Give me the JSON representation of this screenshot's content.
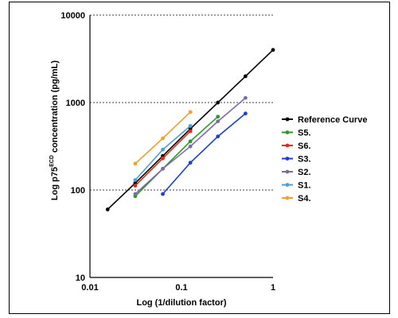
{
  "chart_data": {
    "type": "line",
    "title": "",
    "xlabel": "Log (1/dilution factor)",
    "ylabel": {
      "prefix": "Log p75",
      "superscript": "ECD",
      "suffix": " concentration (pg/mL)"
    },
    "x_scale": "log",
    "y_scale": "log",
    "xlim": [
      0.01,
      1
    ],
    "ylim": [
      10,
      10000
    ],
    "x_ticks": [
      {
        "value": 0.01,
        "label": "0.01"
      },
      {
        "value": 0.1,
        "label": "0.1"
      },
      {
        "value": 1,
        "label": "1"
      }
    ],
    "y_ticks": [
      {
        "value": 10,
        "label": "10"
      },
      {
        "value": 100,
        "label": "100"
      },
      {
        "value": 1000,
        "label": "1000"
      },
      {
        "value": 10000,
        "label": "10000"
      }
    ],
    "grid": "horizontal-dashed",
    "legend_position": "right",
    "series": [
      {
        "name": "Reference Curve",
        "color": "#000000",
        "x": [
          0.0156,
          0.03125,
          0.0625,
          0.125,
          0.25,
          0.5,
          1
        ],
        "y": [
          60,
          120,
          245,
          500,
          1000,
          2000,
          4000
        ]
      },
      {
        "name": "S5.",
        "color": "#2a9a2a",
        "x": [
          0.03125,
          0.0625,
          0.125,
          0.25
        ],
        "y": [
          85,
          175,
          360,
          690
        ]
      },
      {
        "name": "S6.",
        "color": "#e02a1a",
        "x": [
          0.03125,
          0.0625,
          0.125
        ],
        "y": [
          112,
          230,
          470
        ]
      },
      {
        "name": "S3.",
        "color": "#1f3fd0",
        "x": [
          0.0625,
          0.125,
          0.25,
          0.5
        ],
        "y": [
          90,
          205,
          410,
          750
        ]
      },
      {
        "name": "S2.",
        "color": "#7f6aa8",
        "x": [
          0.03125,
          0.0625,
          0.125,
          0.25,
          0.5
        ],
        "y": [
          90,
          175,
          315,
          610,
          1130
        ]
      },
      {
        "name": "S1.",
        "color": "#4f9fd6",
        "x": [
          0.03125,
          0.0625,
          0.125
        ],
        "y": [
          130,
          290,
          540
        ]
      },
      {
        "name": "S4.",
        "color": "#f0a030",
        "x": [
          0.03125,
          0.0625,
          0.125
        ],
        "y": [
          200,
          390,
          780
        ]
      }
    ]
  }
}
